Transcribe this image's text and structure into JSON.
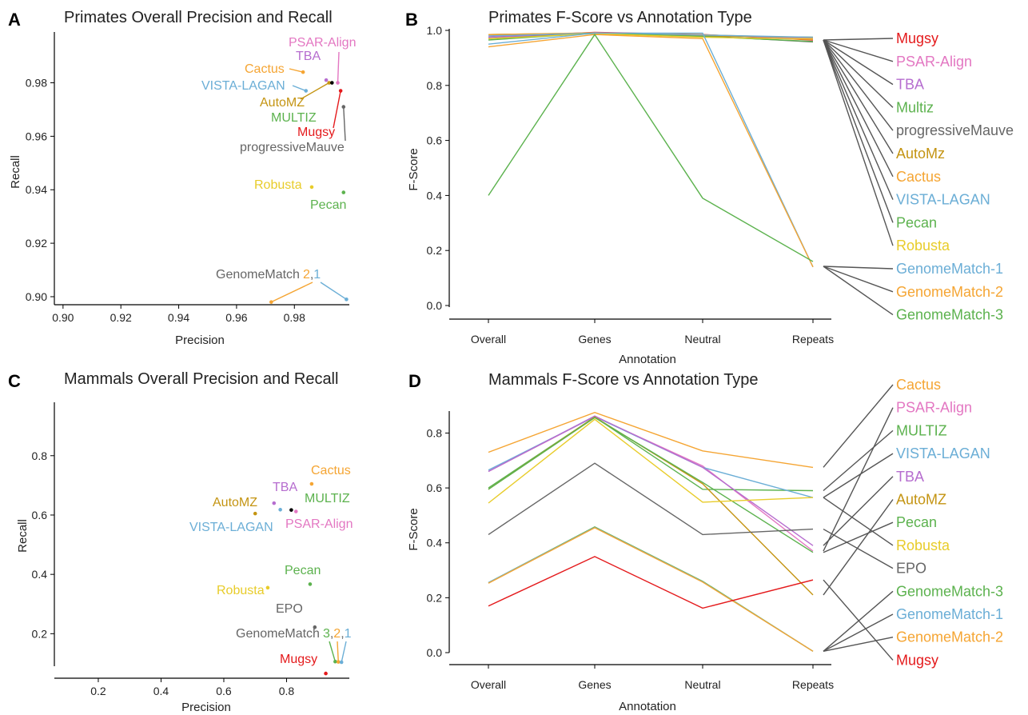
{
  "colors": {
    "Mugsy": "#e41a1c",
    "PSAR-Align": "#e377c2",
    "TBA": "#b66dcf",
    "Multiz": "#5cb24e",
    "progressiveMauve": "#666666",
    "AutoMZ": "#c49412",
    "Cactus": "#f5a533",
    "VISTA-LAGAN": "#6baed6",
    "Pecan": "#5cb24e",
    "Robusta": "#e8cc2a",
    "GenomeMatch-1": "#6baed6",
    "GenomeMatch-2": "#f5a533",
    "GenomeMatch-3": "#5cb24e",
    "EPO": "#666666"
  },
  "panels": {
    "A": {
      "letter": "A",
      "title": "Primates Overall Precision and Recall",
      "xlabel": "Precision",
      "ylabel": "Recall",
      "xticks": [
        "0.90",
        "0.92",
        "0.94",
        "0.96",
        "0.98"
      ],
      "yticks": [
        "0.90",
        "0.92",
        "0.94",
        "0.96",
        "0.98"
      ],
      "point_labels": {
        "psar": "PSAR-Align",
        "tba": "TBA",
        "cactus": "Cactus",
        "vista": "VISTA-LAGAN",
        "automz": "AutoMZ",
        "multiz": "MULTIZ",
        "mugsy": "Mugsy",
        "pmauve": "progressiveMauve",
        "robusta": "Robusta",
        "pecan": "Pecan",
        "gm_text": "GenomeMatch",
        "gm_2": "2",
        "gm_comma": ",",
        "gm_1": "1"
      }
    },
    "B": {
      "letter": "B",
      "title": "Primates F-Score vs Annotation Type",
      "xlabel": "Annotation",
      "ylabel": "F-Score",
      "xticks": [
        "Overall",
        "Genes",
        "Neutral",
        "Repeats"
      ],
      "yticks": [
        "0.0",
        "0.2",
        "0.4",
        "0.6",
        "0.8",
        "1.0"
      ],
      "legend": [
        "Mugsy",
        "PSAR-Align",
        "TBA",
        "Multiz",
        "progressiveMauve",
        "AutoMz",
        "Cactus",
        "VISTA-LAGAN",
        "Pecan",
        "Robusta",
        "GenomeMatch-1",
        "GenomeMatch-2",
        "GenomeMatch-3"
      ]
    },
    "C": {
      "letter": "C",
      "title": "Mammals Overall Precision and Recall",
      "xlabel": "Precision",
      "ylabel": "Recall",
      "xticks": [
        "0.2",
        "0.4",
        "0.6",
        "0.8"
      ],
      "yticks": [
        "0.2",
        "0.4",
        "0.6",
        "0.8"
      ],
      "point_labels": {
        "cactus": "Cactus",
        "tba": "TBA",
        "automz": "AutoMZ",
        "multiz": "MULTIZ",
        "vista": "VISTA-LAGAN",
        "psar": "PSAR-Align",
        "pecan": "Pecan",
        "robusta": "Robusta",
        "epo": "EPO",
        "gm_text": "GenomeMatch",
        "gm_3": "3",
        "gm_c1": ",",
        "gm_2": "2",
        "gm_c2": ",",
        "gm_1": "1",
        "mugsy": "Mugsy"
      }
    },
    "D": {
      "letter": "D",
      "title": "Mammals F-Score vs Annotation Type",
      "xlabel": "Annotation",
      "ylabel": "F-Score",
      "xticks": [
        "Overall",
        "Genes",
        "Neutral",
        "Repeats"
      ],
      "yticks": [
        "0.0",
        "0.2",
        "0.4",
        "0.6",
        "0.8"
      ],
      "legend": [
        "Cactus",
        "PSAR-Align",
        "MULTIZ",
        "VISTA-LAGAN",
        "TBA",
        "AutoMZ",
        "Pecan",
        "Robusta",
        "EPO",
        "GenomeMatch-3",
        "GenomeMatch-1",
        "GenomeMatch-2",
        "Mugsy"
      ]
    }
  },
  "chart_data": [
    {
      "panel": "A",
      "type": "scatter",
      "title": "Primates Overall Precision and Recall",
      "xlabel": "Precision",
      "ylabel": "Recall",
      "xlim": [
        0.897,
        0.999
      ],
      "ylim": [
        0.897,
        0.999
      ],
      "points": [
        {
          "key": "psar",
          "name": "PSAR-Align",
          "x": 0.995,
          "y": 0.98
        },
        {
          "key": "tba",
          "name": "TBA",
          "x": 0.991,
          "y": 0.981
        },
        {
          "key": "cactus",
          "name": "Cactus",
          "x": 0.983,
          "y": 0.984
        },
        {
          "key": "vista",
          "name": "VISTA-LAGAN",
          "x": 0.984,
          "y": 0.977
        },
        {
          "key": "automz",
          "name": "AutoMZ",
          "x": 0.992,
          "y": 0.98
        },
        {
          "key": "multiz",
          "name": "MULTIZ",
          "x": 0.993,
          "y": 0.98
        },
        {
          "key": "mugsy",
          "name": "Mugsy",
          "x": 0.996,
          "y": 0.977
        },
        {
          "key": "pmauve",
          "name": "progressiveMauve",
          "x": 0.997,
          "y": 0.971
        },
        {
          "key": "robusta",
          "name": "Robusta",
          "x": 0.986,
          "y": 0.941
        },
        {
          "key": "pecan",
          "name": "Pecan",
          "x": 0.997,
          "y": 0.939
        },
        {
          "key": "gm2",
          "name": "GenomeMatch-2",
          "x": 0.972,
          "y": 0.898
        },
        {
          "key": "gm1",
          "name": "GenomeMatch-1",
          "x": 0.998,
          "y": 0.899
        }
      ]
    },
    {
      "panel": "B",
      "type": "line",
      "title": "Primates F-Score vs Annotation Type",
      "xlabel": "Annotation",
      "ylabel": "F-Score",
      "categories": [
        "Overall",
        "Genes",
        "Neutral",
        "Repeats"
      ],
      "ylim": [
        0,
        1.0
      ],
      "series": [
        {
          "name": "Mugsy",
          "values": [
            0.975,
            0.993,
            0.985,
            0.965
          ]
        },
        {
          "name": "PSAR-Align",
          "values": [
            0.98,
            0.992,
            0.983,
            0.972
          ]
        },
        {
          "name": "TBA",
          "values": [
            0.975,
            0.99,
            0.982,
            0.97
          ]
        },
        {
          "name": "Multiz",
          "values": [
            0.985,
            0.99,
            0.98,
            0.975
          ]
        },
        {
          "name": "progressiveMauve",
          "values": [
            0.97,
            0.99,
            0.98,
            0.958
          ]
        },
        {
          "name": "AutoMz",
          "values": [
            0.985,
            0.988,
            0.98,
            0.975
          ]
        },
        {
          "name": "Cactus",
          "values": [
            0.985,
            0.991,
            0.984,
            0.973
          ]
        },
        {
          "name": "VISTA-LAGAN",
          "values": [
            0.98,
            0.99,
            0.983,
            0.975
          ]
        },
        {
          "name": "Pecan",
          "values": [
            0.965,
            0.99,
            0.978,
            0.96
          ]
        },
        {
          "name": "Robusta",
          "values": [
            0.97,
            0.988,
            0.975,
            0.968
          ]
        },
        {
          "name": "GenomeMatch-1",
          "values": [
            0.95,
            0.99,
            0.99,
            0.14
          ]
        },
        {
          "name": "GenomeMatch-2",
          "values": [
            0.94,
            0.985,
            0.97,
            0.14
          ]
        },
        {
          "name": "GenomeMatch-3",
          "values": [
            0.4,
            0.985,
            0.39,
            0.16
          ]
        }
      ]
    },
    {
      "panel": "C",
      "type": "scatter",
      "title": "Mammals Overall Precision and Recall",
      "xlabel": "Precision",
      "ylabel": "Recall",
      "xlim": [
        0.06,
        1.0
      ],
      "ylim": [
        0.05,
        0.98
      ],
      "points": [
        {
          "key": "cactus",
          "name": "Cactus",
          "x": 0.88,
          "y": 0.705
        },
        {
          "key": "tba",
          "name": "TBA",
          "x": 0.76,
          "y": 0.64
        },
        {
          "key": "automz",
          "name": "AutoMZ",
          "x": 0.7,
          "y": 0.605
        },
        {
          "key": "vista",
          "name": "VISTA-LAGAN",
          "x": 0.78,
          "y": 0.618
        },
        {
          "key": "multiz",
          "name": "MULTIZ",
          "x": 0.815,
          "y": 0.617
        },
        {
          "key": "psar",
          "name": "PSAR-Align",
          "x": 0.83,
          "y": 0.612
        },
        {
          "key": "pecan",
          "name": "Pecan",
          "x": 0.875,
          "y": 0.367
        },
        {
          "key": "robusta",
          "name": "Robusta",
          "x": 0.74,
          "y": 0.355
        },
        {
          "key": "epo",
          "name": "EPO",
          "x": 0.89,
          "y": 0.222
        },
        {
          "key": "gm3",
          "name": "GenomeMatch-3",
          "x": 0.955,
          "y": 0.106
        },
        {
          "key": "gm2",
          "name": "GenomeMatch-2",
          "x": 0.965,
          "y": 0.105
        },
        {
          "key": "gm1",
          "name": "GenomeMatch-1",
          "x": 0.975,
          "y": 0.104
        },
        {
          "key": "mugsy",
          "name": "Mugsy",
          "x": 0.925,
          "y": 0.066
        }
      ]
    },
    {
      "panel": "D",
      "type": "line",
      "title": "Mammals F-Score vs Annotation Type",
      "xlabel": "Annotation",
      "ylabel": "F-Score",
      "categories": [
        "Overall",
        "Genes",
        "Neutral",
        "Repeats"
      ],
      "ylim": [
        0,
        0.88
      ],
      "series": [
        {
          "name": "Cactus",
          "values": [
            0.73,
            0.875,
            0.735,
            0.675
          ]
        },
        {
          "name": "PSAR-Align",
          "values": [
            0.66,
            0.86,
            0.68,
            0.37
          ]
        },
        {
          "name": "MULTIZ",
          "values": [
            0.6,
            0.858,
            0.595,
            0.59
          ]
        },
        {
          "name": "VISTA-LAGAN",
          "values": [
            0.665,
            0.86,
            0.675,
            0.565
          ]
        },
        {
          "name": "TBA",
          "values": [
            0.66,
            0.862,
            0.675,
            0.39
          ]
        },
        {
          "name": "AutoMZ",
          "values": [
            0.595,
            0.858,
            0.615,
            0.21
          ]
        },
        {
          "name": "Pecan",
          "values": [
            0.595,
            0.856,
            0.62,
            0.365
          ]
        },
        {
          "name": "Robusta",
          "values": [
            0.545,
            0.85,
            0.548,
            0.565
          ]
        },
        {
          "name": "EPO",
          "values": [
            0.43,
            0.69,
            0.43,
            0.45
          ]
        },
        {
          "name": "GenomeMatch-3",
          "values": [
            0.255,
            0.458,
            0.26,
            0.005
          ]
        },
        {
          "name": "GenomeMatch-1",
          "values": [
            0.255,
            0.456,
            0.258,
            0.005
          ]
        },
        {
          "name": "GenomeMatch-2",
          "values": [
            0.253,
            0.455,
            0.257,
            0.005
          ]
        },
        {
          "name": "Mugsy",
          "values": [
            0.17,
            0.35,
            0.162,
            0.265
          ]
        }
      ]
    }
  ]
}
